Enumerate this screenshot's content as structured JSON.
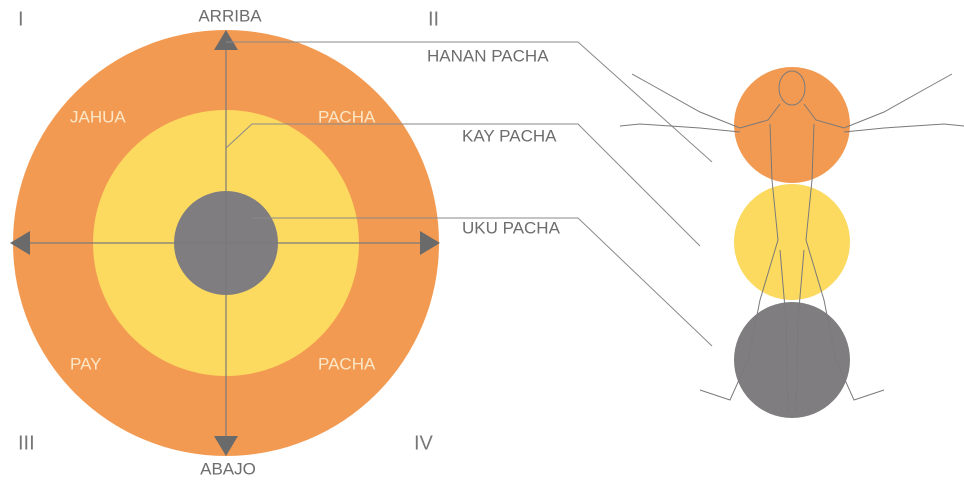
{
  "quadrants": [
    "I",
    "II",
    "III",
    "IV"
  ],
  "directions": {
    "top": "ARRIBA",
    "bottom": "ABAJO"
  },
  "circle_labels": [
    "JAHUA",
    "PACHA",
    "PAY",
    "PACHA"
  ],
  "worlds": [
    "HANAN PACHA",
    "KAY PACHA",
    "UKU PACHA"
  ]
}
